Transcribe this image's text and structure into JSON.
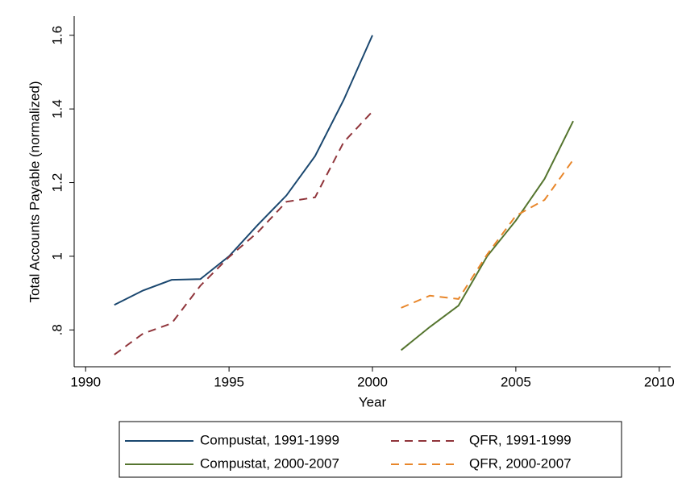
{
  "chart_data": {
    "type": "line",
    "x_label": "Year",
    "y_label": "Total Accounts Payable (normalized)",
    "xlim": [
      1989.6,
      2010.4
    ],
    "xticks": [
      1990,
      1995,
      2000,
      2005,
      2010
    ],
    "ylim": [
      0.7,
      1.652
    ],
    "yticks": [
      {
        "value": 0.8,
        "label": ".8"
      },
      1,
      1.2,
      1.4,
      1.6
    ],
    "grid": false,
    "legend": "bottom",
    "series": [
      {
        "name": "Compustat, 1991-1999",
        "color": "#1a476f",
        "dash": "solid",
        "x": [
          1991,
          1992,
          1993,
          1994,
          1995,
          1996,
          1997,
          1998,
          1999,
          2000
        ],
        "values": [
          0.868,
          0.907,
          0.936,
          0.938,
          1.0,
          1.085,
          1.165,
          1.272,
          1.425,
          1.6
        ]
      },
      {
        "name": "QFR, 1991-1999",
        "color": "#90353b",
        "dash": "dashed",
        "x": [
          1991,
          1992,
          1993,
          1994,
          1995,
          1996,
          1997,
          1998,
          1999,
          2000
        ],
        "values": [
          0.733,
          0.79,
          0.818,
          0.92,
          0.998,
          1.065,
          1.148,
          1.16,
          1.31,
          1.393
        ]
      },
      {
        "name": "Compustat, 2000-2007",
        "color": "#55752f",
        "dash": "solid",
        "x": [
          2001,
          2002,
          2003,
          2004,
          2005,
          2006,
          2007
        ],
        "values": [
          0.745,
          0.808,
          0.866,
          1.0,
          1.097,
          1.21,
          1.367
        ]
      },
      {
        "name": "QFR, 2000-2007",
        "color": "#e8862a",
        "dash": "dashed",
        "x": [
          2001,
          2002,
          2003,
          2004,
          2005,
          2006,
          2007
        ],
        "values": [
          0.86,
          0.893,
          0.884,
          1.005,
          1.11,
          1.153,
          1.262
        ]
      }
    ]
  }
}
